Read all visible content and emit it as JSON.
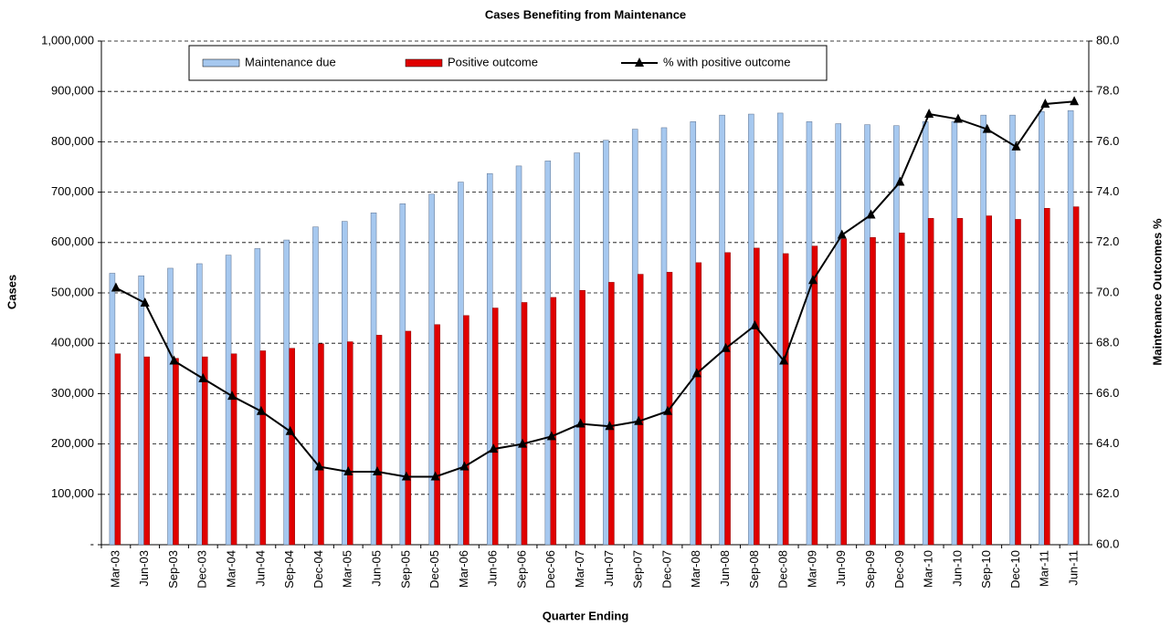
{
  "chart_data": {
    "type": "bar-line",
    "title": "Cases Benefiting from Maintenance",
    "x_label": "Quarter Ending",
    "y_label": "Cases",
    "y2_label": "Maintenance Outcomes %",
    "categories": [
      "Mar-03",
      "Jun-03",
      "Sep-03",
      "Dec-03",
      "Mar-04",
      "Jun-04",
      "Sep-04",
      "Dec-04",
      "Mar-05",
      "Jun-05",
      "Sep-05",
      "Dec-05",
      "Mar-06",
      "Jun-06",
      "Sep-06",
      "Dec-06",
      "Mar-07",
      "Jun-07",
      "Sep-07",
      "Dec-07",
      "Mar-08",
      "Jun-08",
      "Sep-08",
      "Dec-08",
      "Mar-09",
      "Jun-09",
      "Sep-09",
      "Dec-09",
      "Mar-10",
      "Jun-10",
      "Sep-10",
      "Dec-10",
      "Mar-11",
      "Jun-11"
    ],
    "series": [
      {
        "name": "Maintenance due",
        "type": "bar",
        "color": "#a6c8ef",
        "values": [
          539000,
          534000,
          549000,
          558000,
          575000,
          588000,
          605000,
          631000,
          642000,
          659000,
          677000,
          696000,
          720000,
          737000,
          752000,
          762000,
          778000,
          803000,
          825000,
          828000,
          840000,
          853000,
          855000,
          857000,
          840000,
          836000,
          834000,
          832000,
          840000,
          840000,
          853000,
          853000,
          860000,
          862000
        ]
      },
      {
        "name": "Positive outcome",
        "type": "bar",
        "color": "#e00000",
        "values": [
          379000,
          373000,
          370000,
          373000,
          379000,
          385000,
          390000,
          399000,
          403000,
          416000,
          424000,
          437000,
          455000,
          470000,
          481000,
          491000,
          505000,
          521000,
          537000,
          541000,
          560000,
          580000,
          589000,
          578000,
          593000,
          607000,
          610000,
          619000,
          648000,
          648000,
          653000,
          646000,
          668000,
          671000
        ]
      },
      {
        "name": "% with positive outcome",
        "type": "line",
        "axis": "y2",
        "color": "#000000",
        "values": [
          70.2,
          69.6,
          67.3,
          66.6,
          65.9,
          65.3,
          64.5,
          63.1,
          62.9,
          62.9,
          62.7,
          62.7,
          63.1,
          63.8,
          64.0,
          64.3,
          64.8,
          64.7,
          64.9,
          65.3,
          66.8,
          67.8,
          68.7,
          67.3,
          70.5,
          72.3,
          73.1,
          74.4,
          77.1,
          76.9,
          76.5,
          75.8,
          77.5,
          77.6
        ]
      }
    ],
    "ylim": [
      0,
      1000000
    ],
    "yticks": [
      {
        "value": 0,
        "label": "-"
      },
      {
        "value": 100000,
        "label": "100,000"
      },
      {
        "value": 200000,
        "label": "200,000"
      },
      {
        "value": 300000,
        "label": "300,000"
      },
      {
        "value": 400000,
        "label": "400,000"
      },
      {
        "value": 500000,
        "label": "500,000"
      },
      {
        "value": 600000,
        "label": "600,000"
      },
      {
        "value": 700000,
        "label": "700,000"
      },
      {
        "value": 800000,
        "label": "800,000"
      },
      {
        "value": 900000,
        "label": "900,000"
      },
      {
        "value": 1000000,
        "label": "1,000,000"
      }
    ],
    "y2lim": [
      60,
      80
    ],
    "y2ticks": [
      {
        "value": 60,
        "label": "60.0"
      },
      {
        "value": 62,
        "label": "62.0"
      },
      {
        "value": 64,
        "label": "64.0"
      },
      {
        "value": 66,
        "label": "66.0"
      },
      {
        "value": 68,
        "label": "68.0"
      },
      {
        "value": 70,
        "label": "70.0"
      },
      {
        "value": 72,
        "label": "72.0"
      },
      {
        "value": 74,
        "label": "74.0"
      },
      {
        "value": 76,
        "label": "76.0"
      },
      {
        "value": 78,
        "label": "78.0"
      },
      {
        "value": 80,
        "label": "80.0"
      }
    ],
    "grid": true
  }
}
